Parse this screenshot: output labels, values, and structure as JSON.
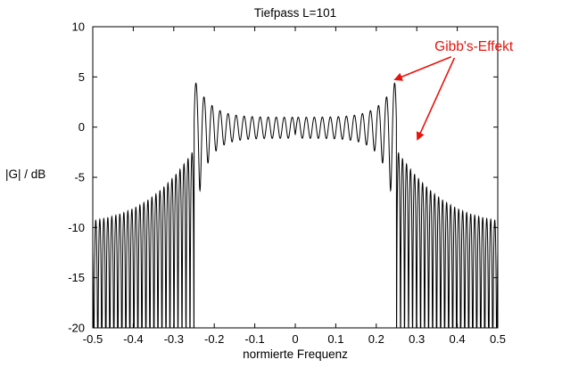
{
  "figure": {
    "background": "#ffffff"
  },
  "chart_data": {
    "type": "line",
    "title": "Tiefpass L=101",
    "xlabel": "normierte Frequenz",
    "ylabel": "|G| / dB",
    "xlim": [
      -0.5,
      0.5
    ],
    "ylim": [
      -20,
      10
    ],
    "xticks": [
      "-0.5",
      "-0.4",
      "-0.3",
      "-0.2",
      "-0.1",
      "0",
      "0.1",
      "0.2",
      "0.3",
      "0.4",
      "0.5"
    ],
    "yticks": [
      "10",
      "5",
      "0",
      "-5",
      "-10",
      "-15",
      "-20"
    ],
    "grid": false,
    "line_color": "#000000",
    "curve": {
      "description": "Magnitude response in dB of a length-101 FIR lowpass (truncated ideal response). Gibbs ripple oscillates about 0 dB in the passband |f| < 0.25 with overshoot peaks of about +4.6 dB at the band edges; the stopband shows a dense comb of sidelobes whose peak envelope decays from about -2.5 dB near the edge to about -9.3 dB at |f| = 0.5; nulls are clipped at -20 dB.",
      "L": 101,
      "cutoff": 0.25,
      "passband_level_db": 0,
      "overshoot_peak_db": 4.6,
      "pass_ripple_base": 0.12,
      "pass_ripple_peak": 0.62,
      "pass_decay": 0.3,
      "stop_base": 0.32,
      "stop_edge": 0.45,
      "stop_decay": 0.12,
      "clip_db": -20,
      "envelope_samples": [
        {
          "f": 0.24,
          "db": 4.6
        },
        {
          "f": 0.27,
          "db": -2.5
        },
        {
          "f": 0.3,
          "db": -4.9
        },
        {
          "f": 0.35,
          "db": -6.9
        },
        {
          "f": 0.4,
          "db": -8.1
        },
        {
          "f": 0.45,
          "db": -8.9
        },
        {
          "f": 0.5,
          "db": -9.3
        }
      ]
    },
    "annotation": {
      "text": "Gibb's-Effekt",
      "color": "#e8130c",
      "text_pos": {
        "f": 0.344,
        "db": 8.8
      },
      "arrows": [
        {
          "from": {
            "f": 0.385,
            "db": 7.0
          },
          "to": {
            "f": 0.247,
            "db": 4.75
          }
        },
        {
          "from": {
            "f": 0.393,
            "db": 6.9
          },
          "to": {
            "f": 0.302,
            "db": -1.2
          }
        }
      ]
    }
  }
}
